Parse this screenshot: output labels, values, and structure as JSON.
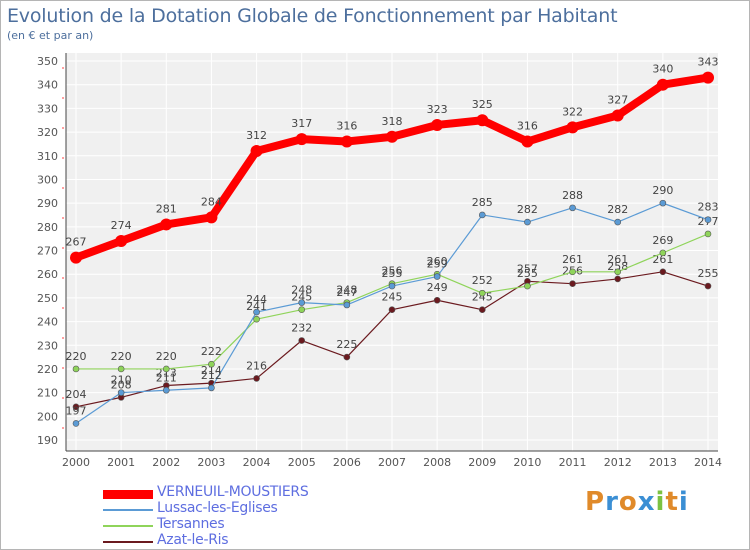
{
  "header": {
    "title": "Evolution de la Dotation Globale de Fonctionnement par Habitant",
    "subtitle": "(en € et par an)"
  },
  "brand": {
    "letters": [
      "P",
      "r",
      "o",
      "x",
      "i",
      "t",
      "i"
    ],
    "colors": [
      "#e08a2a",
      "#3b8fd4",
      "#e08a2a",
      "#3b8fd4",
      "#7cc242",
      "#e08a2a",
      "#3b8fd4"
    ]
  },
  "chart_data": {
    "type": "line",
    "title": "Evolution de la Dotation Globale de Fonctionnement par Habitant",
    "subtitle": "(en € et par an)",
    "xlabel": "",
    "ylabel": "",
    "ylim": [
      190,
      350
    ],
    "yticks": [
      190,
      200,
      210,
      220,
      230,
      240,
      250,
      260,
      270,
      280,
      290,
      300,
      310,
      320,
      330,
      340,
      350
    ],
    "categories": [
      "2000",
      "2001",
      "2002",
      "2003",
      "2004",
      "2005",
      "2006",
      "2007",
      "2008",
      "2009",
      "2010",
      "2011",
      "2012",
      "2013",
      "2014"
    ],
    "grid": true,
    "legend": "bottom-left",
    "series": [
      {
        "name": "VERNEUIL-MOUSTIERS",
        "color": "#ff0000",
        "highlight": true,
        "values": [
          267,
          274,
          281,
          284,
          312,
          317,
          316,
          318,
          323,
          325,
          316,
          322,
          327,
          340,
          343
        ]
      },
      {
        "name": "Lussac-les-Eglises",
        "color": "#5b9bd5",
        "values": [
          197,
          210,
          211,
          212,
          244,
          248,
          247,
          255,
          259,
          285,
          282,
          288,
          282,
          290,
          283
        ]
      },
      {
        "name": "Tersannes",
        "color": "#8fd45a",
        "values": [
          220,
          220,
          220,
          222,
          241,
          245,
          248,
          256,
          260,
          252,
          255,
          261,
          261,
          269,
          277
        ]
      },
      {
        "name": "Azat-le-Ris",
        "color": "#6b1a1f",
        "values": [
          204,
          208,
          213,
          214,
          216,
          232,
          225,
          245,
          249,
          245,
          257,
          256,
          258,
          261,
          255
        ]
      }
    ]
  }
}
